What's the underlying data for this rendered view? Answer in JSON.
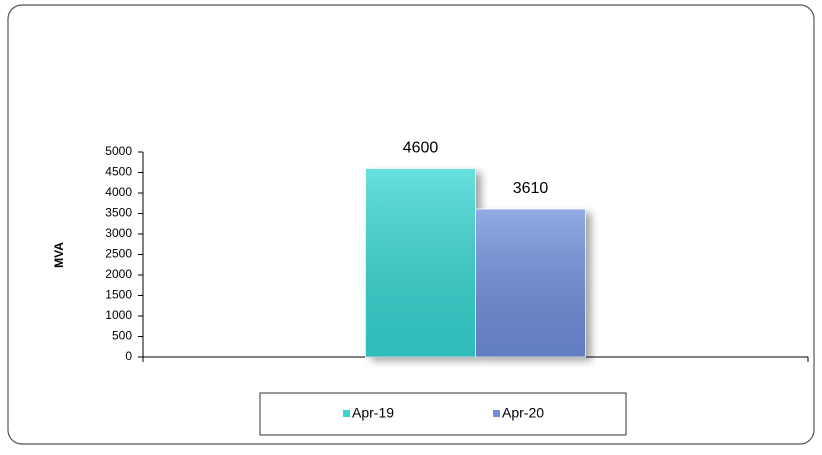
{
  "chart_data": {
    "type": "bar",
    "y_label": "MVA",
    "categories": [
      null
    ],
    "series": [
      {
        "name": "Apr-19",
        "color": "#36d6d3",
        "values": [
          4600
        ]
      },
      {
        "name": "Apr-20",
        "color": "#6f8fdc",
        "values": [
          3610
        ]
      }
    ],
    "ylim": [
      0,
      5000
    ],
    "yticks": [
      0,
      500,
      1000,
      1500,
      2000,
      2500,
      3000,
      3500,
      4000,
      4500,
      5000
    ],
    "grid": false,
    "data_labels": true,
    "legend": "bottom"
  }
}
